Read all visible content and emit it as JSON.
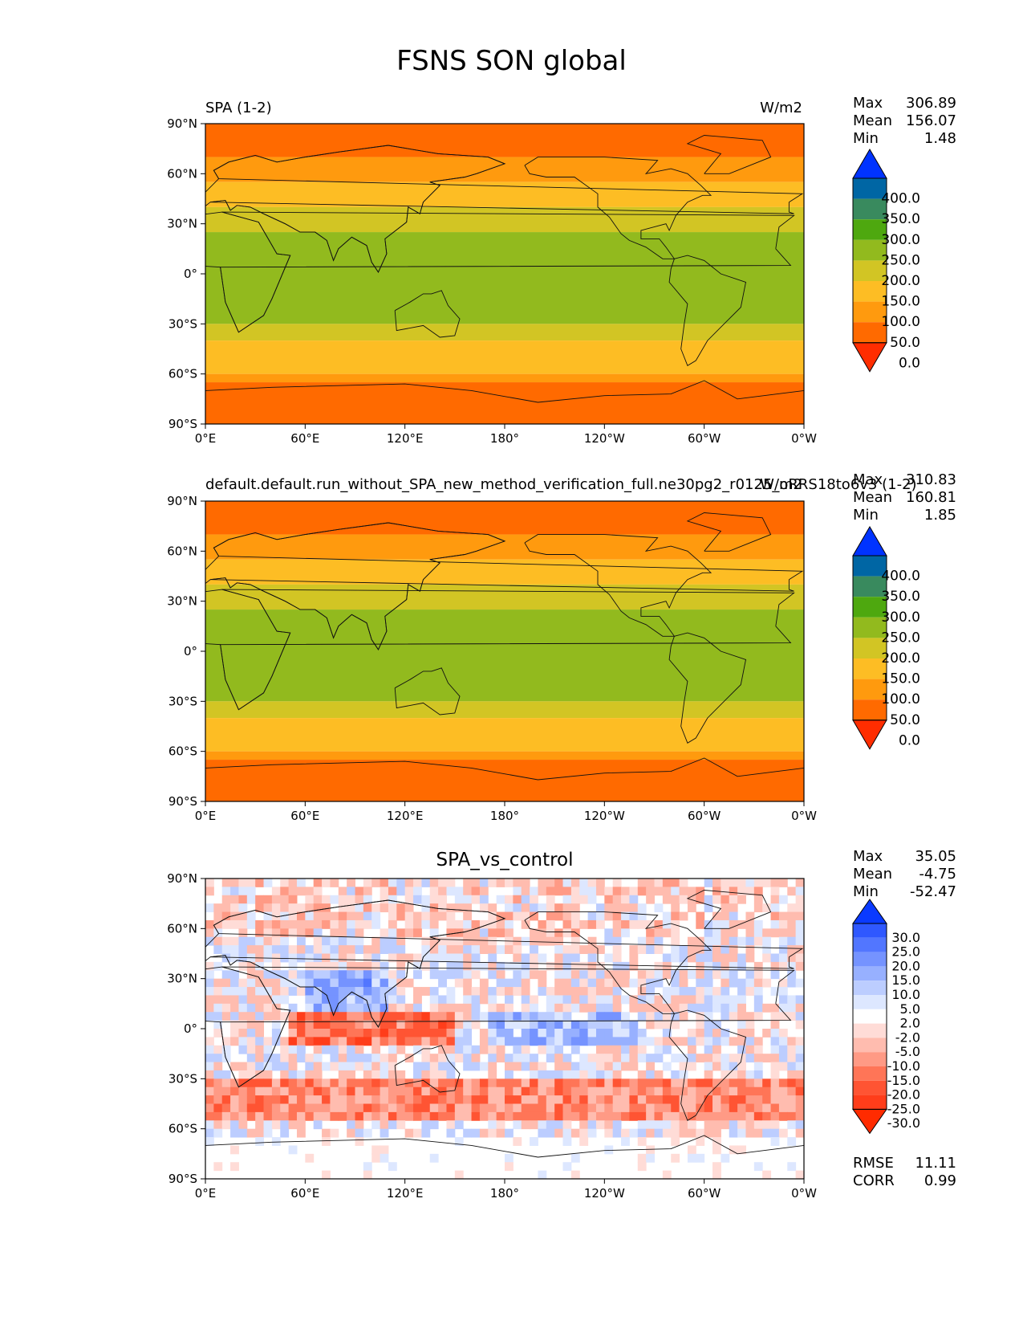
{
  "figure": {
    "title": "FSNS SON global"
  },
  "axes": {
    "lat_ticks": [
      "90°N",
      "60°N",
      "30°N",
      "0°",
      "30°S",
      "60°S",
      "90°S"
    ],
    "lon_ticks": [
      "0°E",
      "60°E",
      "120°E",
      "180°",
      "120°W",
      "60°W",
      "0°W"
    ]
  },
  "panels": [
    {
      "left_title": "SPA (1-2)",
      "right_title": "W/m2",
      "center_title": "",
      "stats": [
        {
          "label": "Max",
          "value": "306.89"
        },
        {
          "label": "Mean",
          "value": "156.07"
        },
        {
          "label": "Min",
          "value": "1.48"
        }
      ],
      "colorbar": {
        "levels": [
          "400.0",
          "350.0",
          "300.0",
          "250.0",
          "200.0",
          "150.0",
          "100.0",
          "50.0",
          "0.0"
        ],
        "colors": [
          "#ff2d00",
          "#ff6a00",
          "#ff9a0e",
          "#fdbd24",
          "#d2c524",
          "#92ba1e",
          "#4ea80f",
          "#398a5e",
          "#0066a4",
          "#0033ff"
        ]
      }
    },
    {
      "left_title": "default.default.run_without_SPA_new_method_verification_full.ne30pg2_r0125_oRRS18to6v3 (1-2)",
      "right_title": "W/m2",
      "center_title": "",
      "stats": [
        {
          "label": "Max",
          "value": "310.83"
        },
        {
          "label": "Mean",
          "value": "160.81"
        },
        {
          "label": "Min",
          "value": "1.85"
        }
      ],
      "colorbar": {
        "levels": [
          "400.0",
          "350.0",
          "300.0",
          "250.0",
          "200.0",
          "150.0",
          "100.0",
          "50.0",
          "0.0"
        ],
        "colors": [
          "#ff2d00",
          "#ff6a00",
          "#ff9a0e",
          "#fdbd24",
          "#d2c524",
          "#92ba1e",
          "#4ea80f",
          "#398a5e",
          "#0066a4",
          "#0033ff"
        ]
      }
    },
    {
      "left_title": "",
      "right_title": "",
      "center_title": "SPA_vs_control",
      "stats": [
        {
          "label": "Max",
          "value": "35.05"
        },
        {
          "label": "Mean",
          "value": "-4.75"
        },
        {
          "label": "Min",
          "value": "-52.47"
        }
      ],
      "bottom_stats": [
        {
          "label": "RMSE",
          "value": "11.11"
        },
        {
          "label": "CORR",
          "value": "0.99"
        }
      ],
      "colorbar": {
        "levels": [
          "30.0",
          "25.0",
          "20.0",
          "15.0",
          "10.0",
          "5.0",
          "2.0",
          "-2.0",
          "-5.0",
          "-10.0",
          "-15.0",
          "-20.0",
          "-25.0",
          "-30.0"
        ],
        "colors": [
          "#ff2b00",
          "#ff3d1a",
          "#ff5433",
          "#ff7557",
          "#ff9a85",
          "#ffbcaf",
          "#ffdcd7",
          "#ffffff",
          "#dde7ff",
          "#bccdff",
          "#97b0ff",
          "#7593ff",
          "#5276ff",
          "#2f58ff",
          "#0a3aff"
        ]
      }
    }
  ],
  "chart_data": [
    {
      "type": "heatmap",
      "title": "SPA (1-2)",
      "units": "W/m2",
      "x_ticks": [
        "0°E",
        "60°E",
        "120°E",
        "180°",
        "120°W",
        "60°W",
        "0°W"
      ],
      "y_ticks": [
        "90°N",
        "60°N",
        "30°N",
        "0°",
        "30°S",
        "60°S",
        "90°S"
      ],
      "xlim": [
        0,
        360
      ],
      "ylim": [
        -90,
        90
      ],
      "zonal_bands": [
        {
          "lat": [
            70,
            90
          ],
          "value": 25
        },
        {
          "lat": [
            55,
            70
          ],
          "value": 75
        },
        {
          "lat": [
            40,
            55
          ],
          "value": 125
        },
        {
          "lat": [
            25,
            40
          ],
          "value": 175
        },
        {
          "lat": [
            -30,
            25
          ],
          "value": 225
        },
        {
          "lat": [
            -40,
            -30
          ],
          "value": 175
        },
        {
          "lat": [
            -60,
            -40
          ],
          "value": 125
        },
        {
          "lat": [
            -65,
            -60
          ],
          "value": 75
        },
        {
          "lat": [
            -90,
            -65
          ],
          "value": 25
        }
      ],
      "colorbar_levels": [
        0,
        50,
        100,
        150,
        200,
        250,
        300,
        350,
        400
      ],
      "max": 306.89,
      "mean": 156.07,
      "min": 1.48
    },
    {
      "type": "heatmap",
      "title": "default.default.run_without_SPA_new_method_verification_full.ne30pg2_r0125_oRRS18to6v3 (1-2)",
      "units": "W/m2",
      "x_ticks": [
        "0°E",
        "60°E",
        "120°E",
        "180°",
        "120°W",
        "60°W",
        "0°W"
      ],
      "y_ticks": [
        "90°N",
        "60°N",
        "30°N",
        "0°",
        "30°S",
        "60°S",
        "90°S"
      ],
      "xlim": [
        0,
        360
      ],
      "ylim": [
        -90,
        90
      ],
      "zonal_bands": [
        {
          "lat": [
            70,
            90
          ],
          "value": 25
        },
        {
          "lat": [
            55,
            70
          ],
          "value": 75
        },
        {
          "lat": [
            40,
            55
          ],
          "value": 125
        },
        {
          "lat": [
            25,
            40
          ],
          "value": 175
        },
        {
          "lat": [
            -30,
            25
          ],
          "value": 225
        },
        {
          "lat": [
            -40,
            -30
          ],
          "value": 175
        },
        {
          "lat": [
            -60,
            -40
          ],
          "value": 125
        },
        {
          "lat": [
            -65,
            -60
          ],
          "value": 75
        },
        {
          "lat": [
            -90,
            -65
          ],
          "value": 25
        }
      ],
      "colorbar_levels": [
        0,
        50,
        100,
        150,
        200,
        250,
        300,
        350,
        400
      ],
      "max": 310.83,
      "mean": 160.81,
      "min": 1.85
    },
    {
      "type": "heatmap",
      "title": "SPA_vs_control",
      "x_ticks": [
        "0°E",
        "60°E",
        "120°E",
        "180°",
        "120°W",
        "60°W",
        "0°W"
      ],
      "y_ticks": [
        "90°N",
        "60°N",
        "30°N",
        "0°",
        "30°S",
        "60°S",
        "90°S"
      ],
      "xlim": [
        0,
        360
      ],
      "ylim": [
        -90,
        90
      ],
      "colorbar_levels": [
        -30,
        -25,
        -20,
        -15,
        -10,
        -5,
        -2,
        2,
        5,
        10,
        15,
        20,
        25,
        30
      ],
      "max": 35.05,
      "mean": -4.75,
      "min": -52.47,
      "rmse": 11.11,
      "corr": 0.99
    }
  ]
}
